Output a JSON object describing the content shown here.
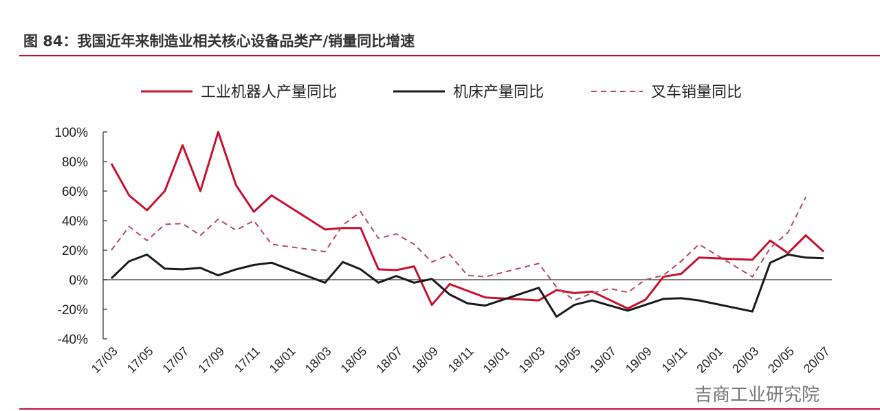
{
  "title": "图 84：我国近年来制造业相关核心设备品类产/销量同比增速",
  "watermark": "吉商工业研究院",
  "chart_data": {
    "type": "line",
    "title": "图 84：我国近年来制造业相关核心设备品类产/销量同比增速",
    "xlabel": "",
    "ylabel": "",
    "ylim": [
      -40,
      100
    ],
    "yticks": [
      "-40%",
      "-20%",
      "0%",
      "20%",
      "40%",
      "60%",
      "80%",
      "100%"
    ],
    "yticks_values": [
      -40,
      -20,
      0,
      20,
      40,
      60,
      80,
      100
    ],
    "months": [
      "17/03",
      "17/04",
      "17/05",
      "17/06",
      "17/07",
      "17/08",
      "17/09",
      "17/10",
      "17/11",
      "17/12",
      "18/01",
      "18/02",
      "18/03",
      "18/04",
      "18/05",
      "18/06",
      "18/07",
      "18/08",
      "18/09",
      "18/10",
      "18/11",
      "18/12",
      "19/01",
      "19/02",
      "19/03",
      "19/04",
      "19/05",
      "19/06",
      "19/07",
      "19/08",
      "19/09",
      "19/10",
      "19/11",
      "19/12",
      "20/01",
      "20/02",
      "20/03",
      "20/04",
      "20/05",
      "20/06",
      "20/07"
    ],
    "xtick_labels": [
      "17/03",
      "17/05",
      "17/07",
      "17/09",
      "17/11",
      "18/01",
      "18/03",
      "18/05",
      "18/07",
      "18/09",
      "18/11",
      "19/01",
      "19/03",
      "19/05",
      "19/07",
      "19/09",
      "19/11",
      "20/01",
      "20/03",
      "20/05",
      "20/07"
    ],
    "legend_position": "top",
    "grid": false,
    "series": [
      {
        "name": "工业机器人产量同比",
        "color": "#c8102e",
        "dash": "solid",
        "points": [
          [
            "17/03",
            78.6
          ],
          [
            "17/04",
            57
          ],
          [
            "17/05",
            47
          ],
          [
            "17/06",
            60
          ],
          [
            "17/07",
            91
          ],
          [
            "17/08",
            60
          ],
          [
            "17/09",
            100
          ],
          [
            "17/10",
            64
          ],
          [
            "17/11",
            46
          ],
          [
            "17/12",
            57
          ],
          [
            "18/03",
            34
          ],
          [
            "18/04",
            35
          ],
          [
            "18/05",
            35
          ],
          [
            "18/06",
            7
          ],
          [
            "18/07",
            6.5
          ],
          [
            "18/08",
            9
          ],
          [
            "18/09",
            -17
          ],
          [
            "18/10",
            -3
          ],
          [
            "18/12",
            -12
          ],
          [
            "19/03",
            -14
          ],
          [
            "19/04",
            -7
          ],
          [
            "19/05",
            -9
          ],
          [
            "19/06",
            -8
          ],
          [
            "19/08",
            -19.5
          ],
          [
            "19/09",
            -13.5
          ],
          [
            "19/10",
            2
          ],
          [
            "19/11",
            4
          ],
          [
            "19/12",
            15
          ],
          [
            "20/03",
            13.5
          ],
          [
            "20/04",
            26.5
          ],
          [
            "20/05",
            18
          ],
          [
            "20/06",
            30
          ],
          [
            "20/07",
            19
          ]
        ]
      },
      {
        "name": "机床产量同比",
        "color": "#1a1a1a",
        "dash": "solid",
        "points": [
          [
            "17/03",
            1
          ],
          [
            "17/04",
            12.5
          ],
          [
            "17/05",
            17
          ],
          [
            "17/06",
            7.5
          ],
          [
            "17/07",
            7
          ],
          [
            "17/08",
            8
          ],
          [
            "17/09",
            3
          ],
          [
            "17/10",
            7
          ],
          [
            "17/11",
            10
          ],
          [
            "17/12",
            11.5
          ],
          [
            "18/03",
            -2
          ],
          [
            "18/04",
            12
          ],
          [
            "18/05",
            7
          ],
          [
            "18/06",
            -2
          ],
          [
            "18/07",
            2.5
          ],
          [
            "18/08",
            -2
          ],
          [
            "18/09",
            0.5
          ],
          [
            "18/10",
            -10
          ],
          [
            "18/11",
            -16
          ],
          [
            "18/12",
            -17.5
          ],
          [
            "19/03",
            -5.5
          ],
          [
            "19/04",
            -25
          ],
          [
            "19/05",
            -17
          ],
          [
            "19/06",
            -14
          ],
          [
            "19/08",
            -21
          ],
          [
            "19/10",
            -13
          ],
          [
            "19/11",
            -12.5
          ],
          [
            "19/12",
            -14
          ],
          [
            "20/03",
            -21.5
          ],
          [
            "20/04",
            11.5
          ],
          [
            "20/05",
            17
          ],
          [
            "20/06",
            15
          ],
          [
            "20/07",
            14.5
          ]
        ]
      },
      {
        "name": "叉车销量同比",
        "color": "#b5485e",
        "dash": "dashed",
        "points": [
          [
            "17/03",
            20
          ],
          [
            "17/04",
            36
          ],
          [
            "17/05",
            26.5
          ],
          [
            "17/06",
            37.5
          ],
          [
            "17/07",
            38
          ],
          [
            "17/08",
            30
          ],
          [
            "17/09",
            41
          ],
          [
            "17/10",
            33.5
          ],
          [
            "17/11",
            40
          ],
          [
            "17/12",
            24
          ],
          [
            "18/03",
            19
          ],
          [
            "18/04",
            37
          ],
          [
            "18/05",
            46
          ],
          [
            "18/06",
            28
          ],
          [
            "18/07",
            31
          ],
          [
            "18/08",
            24
          ],
          [
            "18/09",
            12
          ],
          [
            "18/10",
            17
          ],
          [
            "18/11",
            3
          ],
          [
            "18/12",
            2
          ],
          [
            "19/03",
            11
          ],
          [
            "19/04",
            -5
          ],
          [
            "19/05",
            -14
          ],
          [
            "19/06",
            -9
          ],
          [
            "19/07",
            -6
          ],
          [
            "19/08",
            -8.5
          ],
          [
            "19/09",
            0
          ],
          [
            "19/10",
            3
          ],
          [
            "19/11",
            12.5
          ],
          [
            "19/12",
            24
          ],
          [
            "20/03",
            2
          ],
          [
            "20/04",
            21.5
          ],
          [
            "20/05",
            32
          ],
          [
            "20/06",
            56
          ]
        ]
      }
    ]
  }
}
